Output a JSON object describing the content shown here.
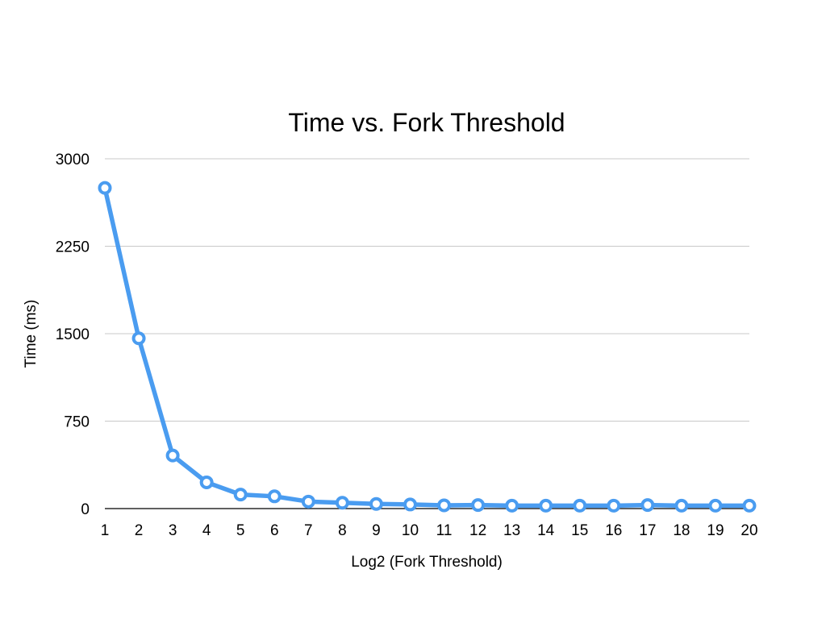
{
  "chart_data": {
    "type": "line",
    "title": "Time vs. Fork Threshold",
    "xlabel": "Log2 (Fork Threshold)",
    "ylabel": "Time (ms)",
    "x": [
      1,
      2,
      3,
      4,
      5,
      6,
      7,
      8,
      9,
      10,
      11,
      12,
      13,
      14,
      15,
      16,
      17,
      18,
      19,
      20
    ],
    "xticks": [
      "1",
      "2",
      "3",
      "4",
      "5",
      "6",
      "7",
      "8",
      "9",
      "10",
      "11",
      "12",
      "13",
      "14",
      "15",
      "16",
      "17",
      "18",
      "19",
      "20"
    ],
    "yticks": [
      "3000",
      "2250",
      "1500",
      "750",
      "0"
    ],
    "yticks_values": [
      3000,
      2250,
      1500,
      750,
      0
    ],
    "ylim": [
      0,
      3000
    ],
    "grid": true,
    "legend": "none",
    "series": [
      {
        "values": [
          2750,
          1460,
          455,
          225,
          120,
          105,
          60,
          50,
          40,
          35,
          28,
          30,
          25,
          25,
          25,
          25,
          30,
          25,
          25,
          25
        ],
        "color": "#4a9cf0"
      }
    ]
  }
}
